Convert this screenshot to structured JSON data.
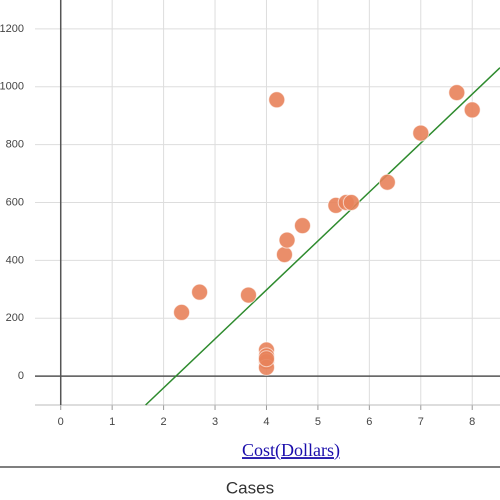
{
  "chart_data": {
    "type": "scatter",
    "x_label": "Cost(Dollars)",
    "footer": "Cases",
    "x": [
      2.35,
      2.7,
      3.65,
      4,
      4,
      4,
      4,
      4,
      4.2,
      4.35,
      4.4,
      4.7,
      5.35,
      5.55,
      5.65,
      6.35,
      7,
      7.7,
      8
    ],
    "series": [
      {
        "color": "#e8825a",
        "values": [
          220,
          290,
          280,
          90,
          70,
          50,
          30,
          60,
          955,
          420,
          470,
          520,
          590,
          600,
          600,
          670,
          840,
          980,
          920
        ]
      }
    ],
    "trendline": {
      "color": "#2e8b2e",
      "x": [
        1.65,
        8.54
      ],
      "y": [
        -100,
        1066
      ]
    },
    "xlim": [
      -0.5,
      8.54
    ],
    "ylim": [
      -100,
      1300
    ],
    "xticks": [
      0,
      1,
      2,
      3,
      4,
      5,
      6,
      7,
      8
    ],
    "yticks": [
      0,
      200,
      400,
      600,
      800,
      1000,
      1200
    ],
    "grid": true
  }
}
